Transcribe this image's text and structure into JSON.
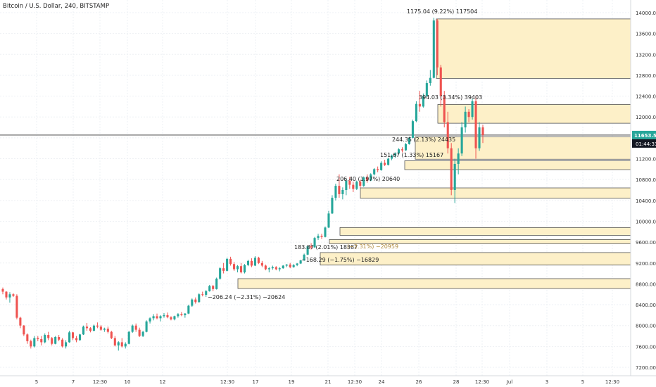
{
  "header": {
    "symbol_title": "Bitcoin / U.S. Dollar, 240, BITSTAMP"
  },
  "price_scale": {
    "ticks": [
      "14000.00",
      "13600.00",
      "13200.00",
      "12800.00",
      "12400.00",
      "12000.00",
      "11600.00",
      "11200.00",
      "10800.00",
      "10400.00",
      "10000.00",
      "9600.00",
      "9200.00",
      "8800.00",
      "8400.00",
      "8000.00",
      "7600.00",
      "7200.00"
    ],
    "last_price": "11653.53",
    "countdown": "01:44:33",
    "last_price_color": "#26a69a",
    "countdown_color": "#131722"
  },
  "time_scale": {
    "ticks": [
      "5",
      "7",
      "12:30",
      "10",
      "12",
      "12:30",
      "17",
      "19",
      "21",
      "12:30",
      "24",
      "26",
      "28",
      "12:30",
      "Jul",
      "3",
      "5",
      "12:30"
    ]
  },
  "annotations": [
    "1175.04 (9.22%) 117504",
    "394.03 (3.34%) 39403",
    "244.35 (2.13%) 24435",
    "151.67 (1.33%) 15167",
    "206.40 (1.97%) 20640",
    "183.87 (2.01%) 18387",
    "(−2.31%) −20959",
    "−168.29 (−1.75%) −16829",
    "−206.24 (−2.31%) −20624"
  ],
  "colors": {
    "up": "#26a69a",
    "down": "#ef5350",
    "zone_fill": "#fdf0c8",
    "zone_stroke": "#555555",
    "grid": "#eef0f4"
  },
  "chart_data": {
    "type": "candlestick",
    "title": "Bitcoin / U.S. Dollar, 240, BITSTAMP",
    "ylim": [
      7100,
      14200
    ],
    "last_price": 11653.53,
    "zones": [
      {
        "from": 12740,
        "to": 13880
      },
      {
        "from": 11880,
        "to": 12240
      },
      {
        "from": 11190,
        "to": 11620
      },
      {
        "from": 10990,
        "to": 11160
      },
      {
        "from": 10440,
        "to": 10640
      },
      {
        "from": 9730,
        "to": 9880
      },
      {
        "from": 9570,
        "to": 9650
      },
      {
        "from": 9160,
        "to": 9400
      },
      {
        "from": 8710,
        "to": 8900
      }
    ],
    "candles": [
      [
        8700,
        8730,
        8600,
        8650
      ],
      [
        8650,
        8660,
        8500,
        8540
      ],
      [
        8540,
        8640,
        8440,
        8600
      ],
      [
        8600,
        8620,
        8550,
        8570
      ],
      [
        8570,
        8600,
        8120,
        8150
      ],
      [
        8150,
        8170,
        7950,
        8000
      ],
      [
        8000,
        8010,
        7800,
        7830
      ],
      [
        7830,
        7850,
        7650,
        7700
      ],
      [
        7700,
        7730,
        7560,
        7600
      ],
      [
        7600,
        7800,
        7580,
        7760
      ],
      [
        7760,
        7800,
        7700,
        7740
      ],
      [
        7740,
        7800,
        7620,
        7680
      ],
      [
        7680,
        7850,
        7660,
        7820
      ],
      [
        7820,
        7880,
        7720,
        7760
      ],
      [
        7760,
        7780,
        7620,
        7650
      ],
      [
        7650,
        7800,
        7640,
        7780
      ],
      [
        7780,
        7820,
        7700,
        7730
      ],
      [
        7730,
        7760,
        7580,
        7600
      ],
      [
        7600,
        7720,
        7560,
        7680
      ],
      [
        7680,
        7900,
        7670,
        7870
      ],
      [
        7870,
        7880,
        7720,
        7760
      ],
      [
        7760,
        7800,
        7680,
        7720
      ],
      [
        7720,
        7840,
        7710,
        7830
      ],
      [
        7830,
        8000,
        7820,
        7980
      ],
      [
        7980,
        8050,
        7900,
        7950
      ],
      [
        7950,
        7970,
        7870,
        7900
      ],
      [
        7900,
        8020,
        7890,
        8000
      ],
      [
        8000,
        8060,
        7950,
        7980
      ],
      [
        7980,
        8010,
        7900,
        7920
      ],
      [
        7920,
        7960,
        7880,
        7940
      ],
      [
        7940,
        7980,
        7850,
        7880
      ],
      [
        7880,
        7900,
        7740,
        7760
      ],
      [
        7760,
        7800,
        7600,
        7620
      ],
      [
        7620,
        7700,
        7520,
        7680
      ],
      [
        7680,
        7760,
        7580,
        7600
      ],
      [
        7600,
        7680,
        7560,
        7650
      ],
      [
        7650,
        7900,
        7640,
        7880
      ],
      [
        7880,
        8020,
        7860,
        8000
      ],
      [
        8000,
        8040,
        7880,
        7920
      ],
      [
        7920,
        7960,
        7780,
        7800
      ],
      [
        7800,
        7900,
        7780,
        7880
      ],
      [
        7880,
        8100,
        7870,
        8080
      ],
      [
        8080,
        8160,
        8040,
        8140
      ],
      [
        8140,
        8220,
        8100,
        8180
      ],
      [
        8180,
        8230,
        8120,
        8140
      ],
      [
        8140,
        8200,
        8080,
        8180
      ],
      [
        8180,
        8240,
        8150,
        8200
      ],
      [
        8200,
        8250,
        8140,
        8160
      ],
      [
        8160,
        8180,
        8100,
        8120
      ],
      [
        8120,
        8190,
        8100,
        8180
      ],
      [
        8180,
        8240,
        8150,
        8220
      ],
      [
        8220,
        8260,
        8180,
        8200
      ],
      [
        8200,
        8240,
        8150,
        8230
      ],
      [
        8230,
        8400,
        8220,
        8380
      ],
      [
        8380,
        8520,
        8360,
        8500
      ],
      [
        8500,
        8540,
        8420,
        8450
      ],
      [
        8450,
        8620,
        8440,
        8600
      ],
      [
        8600,
        8650,
        8560,
        8590
      ],
      [
        8590,
        8680,
        8550,
        8660
      ],
      [
        8660,
        8780,
        8650,
        8760
      ],
      [
        8760,
        8780,
        8660,
        8700
      ],
      [
        8700,
        8920,
        8690,
        8900
      ],
      [
        8900,
        9120,
        8880,
        9100
      ],
      [
        9100,
        9200,
        9000,
        9050
      ],
      [
        9050,
        9300,
        9040,
        9280
      ],
      [
        9280,
        9320,
        9150,
        9180
      ],
      [
        9180,
        9220,
        9050,
        9080
      ],
      [
        9080,
        9160,
        9020,
        9140
      ],
      [
        9140,
        9200,
        9000,
        9020
      ],
      [
        9020,
        9180,
        9000,
        9160
      ],
      [
        9160,
        9260,
        9140,
        9240
      ],
      [
        9240,
        9290,
        9120,
        9150
      ],
      [
        9150,
        9330,
        9140,
        9300
      ],
      [
        9300,
        9320,
        9180,
        9200
      ],
      [
        9200,
        9240,
        9120,
        9150
      ],
      [
        9150,
        9170,
        9060,
        9080
      ],
      [
        9080,
        9120,
        9020,
        9100
      ],
      [
        9100,
        9150,
        9070,
        9120
      ],
      [
        9120,
        9140,
        9060,
        9080
      ],
      [
        9080,
        9120,
        9040,
        9100
      ],
      [
        9100,
        9160,
        9090,
        9150
      ],
      [
        9150,
        9180,
        9120,
        9170
      ],
      [
        9170,
        9200,
        9100,
        9120
      ],
      [
        9120,
        9180,
        9110,
        9160
      ],
      [
        9160,
        9200,
        9140,
        9190
      ],
      [
        9190,
        9260,
        9180,
        9250
      ],
      [
        9250,
        9380,
        9240,
        9360
      ],
      [
        9360,
        9540,
        9350,
        9520
      ],
      [
        9520,
        9580,
        9460,
        9500
      ],
      [
        9500,
        9700,
        9490,
        9680
      ],
      [
        9680,
        9760,
        9640,
        9720
      ],
      [
        9720,
        9760,
        9660,
        9700
      ],
      [
        9700,
        9900,
        9690,
        9880
      ],
      [
        9880,
        10200,
        9870,
        10150
      ],
      [
        10150,
        10500,
        10140,
        10450
      ],
      [
        10450,
        10720,
        10400,
        10680
      ],
      [
        10680,
        10900,
        10450,
        10520
      ],
      [
        10520,
        10650,
        10420,
        10600
      ],
      [
        10600,
        10820,
        10500,
        10780
      ],
      [
        10780,
        10850,
        10620,
        10700
      ],
      [
        10700,
        10760,
        10560,
        10620
      ],
      [
        10620,
        10780,
        10600,
        10760
      ],
      [
        10760,
        10800,
        10640,
        10680
      ],
      [
        10680,
        10860,
        10660,
        10840
      ],
      [
        10840,
        10900,
        10740,
        10780
      ],
      [
        10780,
        10920,
        10770,
        10900
      ],
      [
        10900,
        11020,
        10880,
        11000
      ],
      [
        11000,
        11050,
        10940,
        10980
      ],
      [
        10980,
        11150,
        10970,
        11120
      ],
      [
        11120,
        11180,
        11060,
        11080
      ],
      [
        11080,
        11220,
        11070,
        11200
      ],
      [
        11200,
        11280,
        11170,
        11260
      ],
      [
        11260,
        11320,
        11220,
        11300
      ],
      [
        11300,
        11400,
        11280,
        11380
      ],
      [
        11380,
        11420,
        11320,
        11360
      ],
      [
        11360,
        11500,
        11350,
        11480
      ],
      [
        11480,
        11620,
        11470,
        11600
      ],
      [
        11600,
        11950,
        11590,
        11920
      ],
      [
        11920,
        12300,
        11900,
        12250
      ],
      [
        12250,
        12500,
        12100,
        12200
      ],
      [
        12200,
        12450,
        12180,
        12400
      ],
      [
        12400,
        12700,
        12380,
        12650
      ],
      [
        12650,
        12900,
        12600,
        12750
      ],
      [
        12750,
        13900,
        12740,
        13850
      ],
      [
        13850,
        13880,
        12800,
        12950
      ],
      [
        12950,
        13000,
        12200,
        12400
      ],
      [
        12400,
        12500,
        11800,
        11900
      ],
      [
        11900,
        12100,
        11300,
        11400
      ],
      [
        11400,
        11500,
        10500,
        10600
      ],
      [
        10600,
        11200,
        10350,
        11100
      ],
      [
        11100,
        11400,
        10900,
        11300
      ],
      [
        11300,
        11900,
        11250,
        11800
      ],
      [
        11800,
        12200,
        11700,
        12100
      ],
      [
        12100,
        12150,
        11900,
        12000
      ],
      [
        12000,
        12350,
        11950,
        12300
      ],
      [
        12300,
        12400,
        11200,
        11400
      ],
      [
        11400,
        11900,
        11350,
        11800
      ],
      [
        11800,
        11850,
        11500,
        11653.53
      ]
    ]
  }
}
